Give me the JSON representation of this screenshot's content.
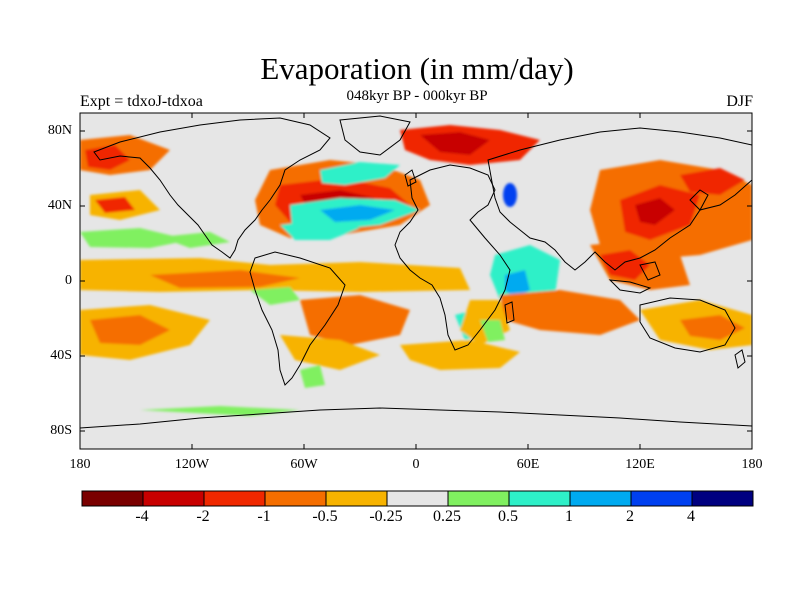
{
  "title": "Evaporation (in mm/day)",
  "subtitle": "048kyr BP - 000kyr BP",
  "left_label": "Expt = tdxoJ-tdxoa",
  "right_label": "DJF",
  "y_ticks": [
    "80N",
    "40N",
    "0",
    "40S",
    "80S"
  ],
  "x_ticks": [
    "180",
    "120W",
    "60W",
    "0",
    "60E",
    "120E",
    "180"
  ],
  "colorbar": {
    "labels": [
      "-4",
      "-2",
      "-1",
      "-0.5",
      "-0.25",
      "0.25",
      "0.5",
      "1",
      "2",
      "4"
    ],
    "colors": [
      "#7a0000",
      "#c80000",
      "#f02800",
      "#f56e00",
      "#f7b300",
      "#e6e6e6",
      "#80f060",
      "#2ef0c8",
      "#00aaf0",
      "#0040f0",
      "#000080"
    ]
  },
  "map_colors": {
    "background": "#e6e6e6",
    "land_outline": "#000000"
  }
}
